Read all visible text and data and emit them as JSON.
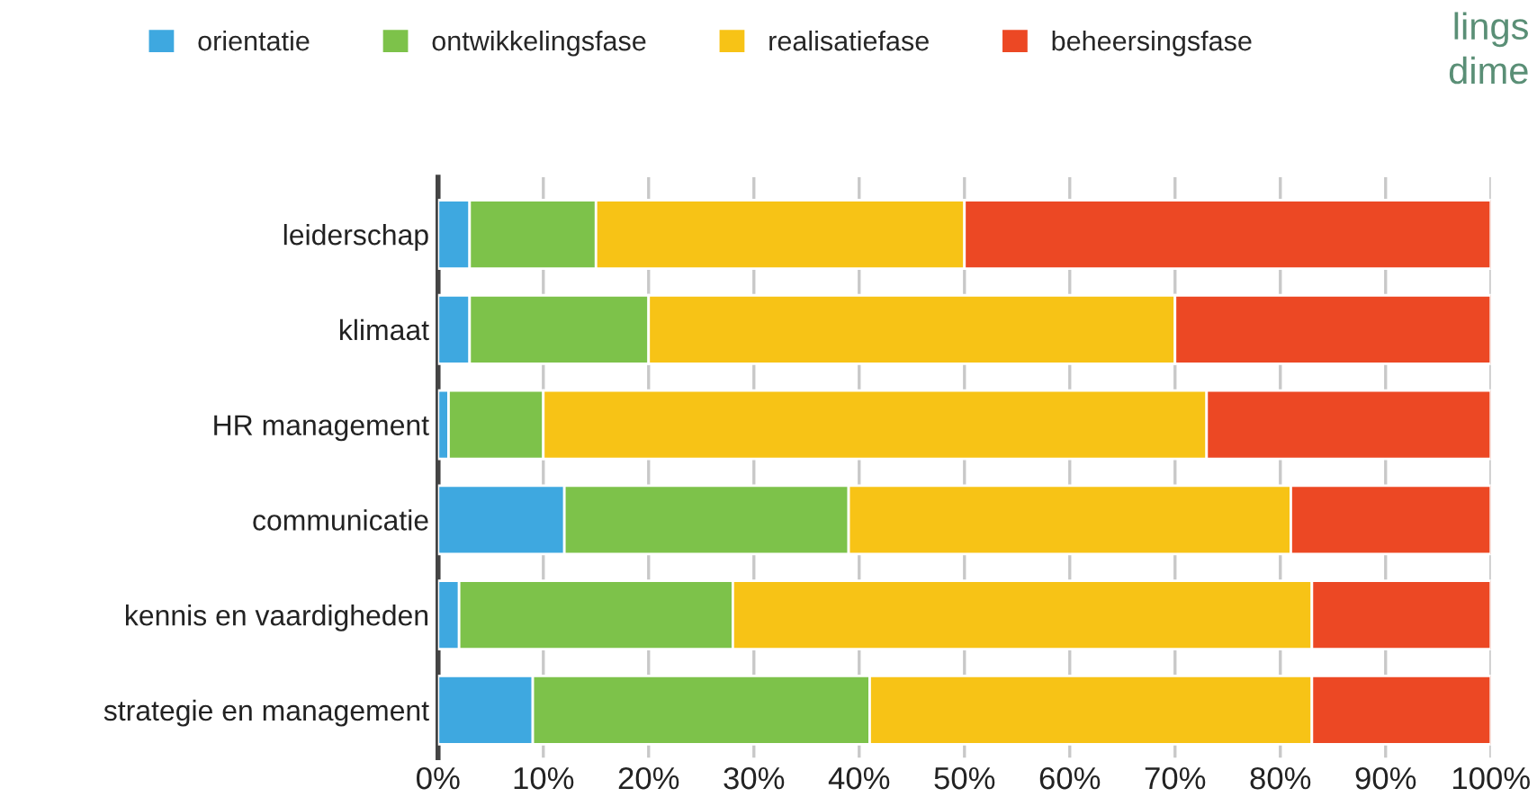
{
  "chart_data": {
    "type": "bar",
    "orientation": "horizontal",
    "stacked": true,
    "categories": [
      "leiderschap",
      "klimaat",
      "HR management",
      "communicatie",
      "kennis en vaardigheden",
      "strategie en management"
    ],
    "series": [
      {
        "name": "orientatie",
        "color": "#3ea8e0",
        "values": [
          3,
          3,
          1,
          12,
          2,
          9
        ]
      },
      {
        "name": "ontwikkelingsfase",
        "color": "#7dc24a",
        "values": [
          12,
          17,
          9,
          27,
          26,
          32
        ]
      },
      {
        "name": "realisatiefase",
        "color": "#f7c316",
        "values": [
          35,
          50,
          63,
          42,
          55,
          42
        ]
      },
      {
        "name": "beheersingsfase",
        "color": "#ec4824",
        "values": [
          50,
          30,
          27,
          19,
          17,
          17
        ]
      }
    ],
    "xlim": [
      0,
      100
    ],
    "xticks": [
      {
        "value": 0,
        "label": "0%"
      },
      {
        "value": 10,
        "label": "10%"
      },
      {
        "value": 20,
        "label": "20%"
      },
      {
        "value": 30,
        "label": "30%"
      },
      {
        "value": 40,
        "label": "40%"
      },
      {
        "value": 50,
        "label": "50%"
      },
      {
        "value": 60,
        "label": "60%"
      },
      {
        "value": 70,
        "label": "70%"
      },
      {
        "value": 80,
        "label": "80%"
      },
      {
        "value": 90,
        "label": "90%"
      },
      {
        "value": 100,
        "label": "100%"
      }
    ],
    "grid": "x",
    "legend": "top left",
    "annotations": [
      "lings",
      "dime"
    ]
  }
}
